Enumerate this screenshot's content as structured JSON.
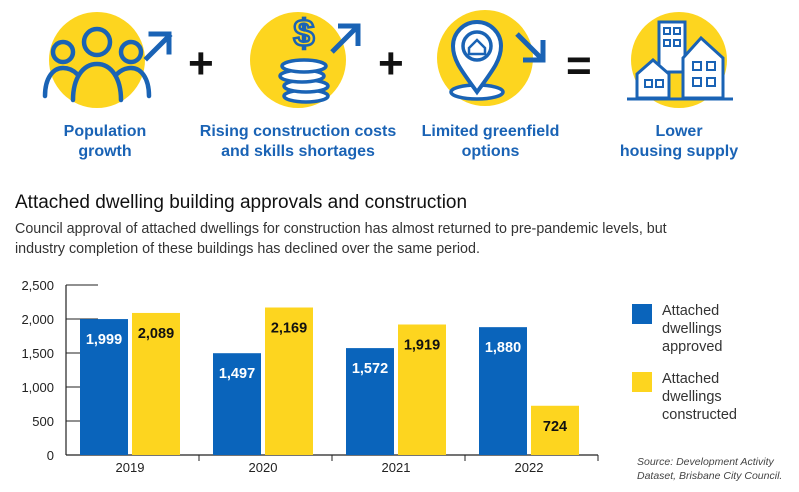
{
  "infographic": {
    "factors": [
      {
        "label": "Population\ngrowth",
        "icon": "people-group-icon",
        "trend": "up"
      },
      {
        "label": "Rising construction costs\nand skills shortages",
        "icon": "coin-stack-icon",
        "trend": "up"
      },
      {
        "label": "Limited greenfield\noptions",
        "icon": "location-pin-house-icon",
        "trend": "down"
      },
      {
        "label": "Lower\nhousing supply",
        "icon": "houses-icon"
      }
    ],
    "operators": [
      "+",
      "+",
      "="
    ]
  },
  "title": "Attached dwelling building approvals and construction",
  "description": "Council approval of attached dwellings for construction has almost returned to pre-pandemic levels, but industry completion of these buildings has declined over the same period.",
  "source": "Source: Development Activity Dataset, Brisbane City Council.",
  "colors": {
    "blue": "#0a64bb",
    "yellow": "#fdd51f",
    "accent": "#1a63b5"
  },
  "chart_data": {
    "type": "bar",
    "categories": [
      "2019",
      "2020",
      "2021",
      "2022"
    ],
    "series": [
      {
        "name": "Attached dwellings approved",
        "values": [
          1999,
          1497,
          1572,
          1880
        ],
        "labels": [
          "1,999",
          "1,497",
          "1,572",
          "1,880"
        ],
        "color": "#0a64bb",
        "label_color": "#ffffff"
      },
      {
        "name": "Attached dwellings constructed",
        "values": [
          2089,
          2169,
          1919,
          724
        ],
        "labels": [
          "2,089",
          "2,169",
          "1,919",
          "724"
        ],
        "color": "#fdd51f",
        "label_color": "#111111"
      }
    ],
    "yticks": [
      0,
      500,
      1000,
      1500,
      2000,
      2500
    ],
    "ytick_labels": [
      "0",
      "500",
      "1,000",
      "1,500",
      "2,000",
      "2,500"
    ],
    "ylim": [
      0,
      2500
    ],
    "grid": false,
    "legend": "right"
  }
}
